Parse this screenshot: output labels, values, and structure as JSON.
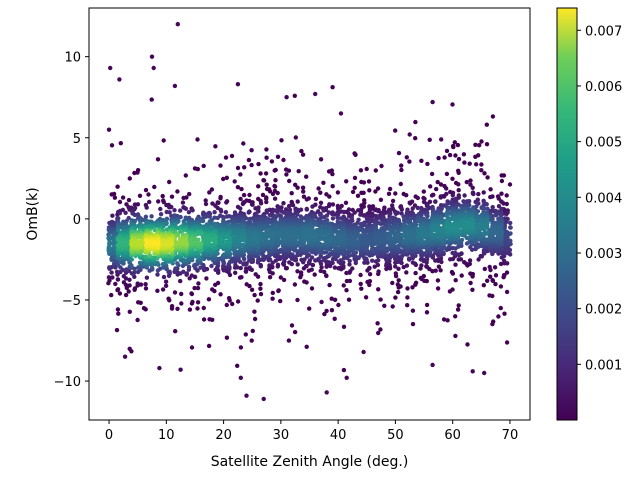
{
  "chart_data": {
    "type": "scatter",
    "title": "",
    "xlabel": "Satellite Zenith Angle (deg.)",
    "ylabel": "OmB(k)",
    "xlim": [
      -3.5,
      73.5
    ],
    "ylim": [
      -12.4,
      13.0
    ],
    "xticks": [
      0,
      10,
      20,
      30,
      40,
      50,
      60,
      70
    ],
    "yticks": [
      -10,
      -5,
      0,
      5,
      10
    ],
    "xtick_labels": [
      "0",
      "10",
      "20",
      "30",
      "40",
      "50",
      "60",
      "70"
    ],
    "ytick_labels": [
      "−10",
      "−5",
      "0",
      "5",
      "10"
    ],
    "color_by": "point density",
    "colormap": "viridis",
    "colorbar": {
      "range": [
        0.0,
        0.0074
      ],
      "ticks": [
        0.001,
        0.002,
        0.003,
        0.004,
        0.005,
        0.006,
        0.007
      ],
      "tick_labels": [
        "0.001",
        "0.002",
        "0.003",
        "0.004",
        "0.005",
        "0.006",
        "0.007"
      ],
      "placement": "right"
    },
    "density_core": [
      {
        "x": 0.5,
        "y": -1.6,
        "density": 0.003
      },
      {
        "x": 2.5,
        "y": -1.5,
        "density": 0.0048
      },
      {
        "x": 5.0,
        "y": -1.5,
        "density": 0.0066
      },
      {
        "x": 7.5,
        "y": -1.5,
        "density": 0.0074
      },
      {
        "x": 10.0,
        "y": -1.5,
        "density": 0.007
      },
      {
        "x": 12.5,
        "y": -1.4,
        "density": 0.0062
      },
      {
        "x": 15.0,
        "y": -1.4,
        "density": 0.0054
      },
      {
        "x": 17.5,
        "y": -1.3,
        "density": 0.0046
      },
      {
        "x": 20.0,
        "y": -1.3,
        "density": 0.004
      },
      {
        "x": 22.5,
        "y": -1.2,
        "density": 0.0034
      },
      {
        "x": 25.0,
        "y": -1.2,
        "density": 0.003
      },
      {
        "x": 27.5,
        "y": -1.1,
        "density": 0.0028
      },
      {
        "x": 30.0,
        "y": -1.0,
        "density": 0.0027
      },
      {
        "x": 32.5,
        "y": -1.0,
        "density": 0.0027
      },
      {
        "x": 35.0,
        "y": -1.0,
        "density": 0.0028
      },
      {
        "x": 37.5,
        "y": -1.1,
        "density": 0.0027
      },
      {
        "x": 40.0,
        "y": -1.2,
        "density": 0.0025
      },
      {
        "x": 42.5,
        "y": -1.3,
        "density": 0.0023
      },
      {
        "x": 45.0,
        "y": -1.3,
        "density": 0.0021
      },
      {
        "x": 47.5,
        "y": -1.2,
        "density": 0.0022
      },
      {
        "x": 50.0,
        "y": -1.1,
        "density": 0.0024
      },
      {
        "x": 52.5,
        "y": -1.0,
        "density": 0.0027
      },
      {
        "x": 55.0,
        "y": -0.9,
        "density": 0.003
      },
      {
        "x": 57.5,
        "y": -0.7,
        "density": 0.0033
      },
      {
        "x": 60.0,
        "y": -0.5,
        "density": 0.0036
      },
      {
        "x": 62.5,
        "y": -0.4,
        "density": 0.0036
      },
      {
        "x": 65.0,
        "y": -0.5,
        "density": 0.0032
      },
      {
        "x": 67.5,
        "y": -0.8,
        "density": 0.0025
      },
      {
        "x": 70.0,
        "y": -1.1,
        "density": 0.0016
      }
    ],
    "spread_points": [
      {
        "x": 12.0,
        "y": 12.0
      },
      {
        "x": 7.5,
        "y": 10.0
      },
      {
        "x": 0.2,
        "y": 9.3
      },
      {
        "x": 7.8,
        "y": 9.3
      },
      {
        "x": 1.8,
        "y": 8.6
      },
      {
        "x": 22.5,
        "y": 8.3
      },
      {
        "x": 11.5,
        "y": 8.2
      },
      {
        "x": 36.0,
        "y": 7.7
      },
      {
        "x": 31.0,
        "y": 7.5
      },
      {
        "x": 56.5,
        "y": 7.2
      },
      {
        "x": 40.5,
        "y": 6.5
      },
      {
        "x": 52.5,
        "y": 5.2
      },
      {
        "x": 58.0,
        "y": 4.9
      },
      {
        "x": 0.0,
        "y": 5.5
      },
      {
        "x": 65.0,
        "y": 3.0
      },
      {
        "x": 23.0,
        "y": -9.8
      },
      {
        "x": 24.0,
        "y": -10.9
      },
      {
        "x": 27.0,
        "y": -11.1
      },
      {
        "x": 8.8,
        "y": -9.2
      },
      {
        "x": 12.5,
        "y": -9.3
      },
      {
        "x": 2.8,
        "y": -8.5
      },
      {
        "x": 38.0,
        "y": -10.7
      },
      {
        "x": 41.5,
        "y": -9.8
      },
      {
        "x": 56.5,
        "y": -9.0
      },
      {
        "x": 63.5,
        "y": -9.4
      },
      {
        "x": 65.5,
        "y": -9.5
      },
      {
        "x": 69.5,
        "y": -4.5
      }
    ]
  }
}
